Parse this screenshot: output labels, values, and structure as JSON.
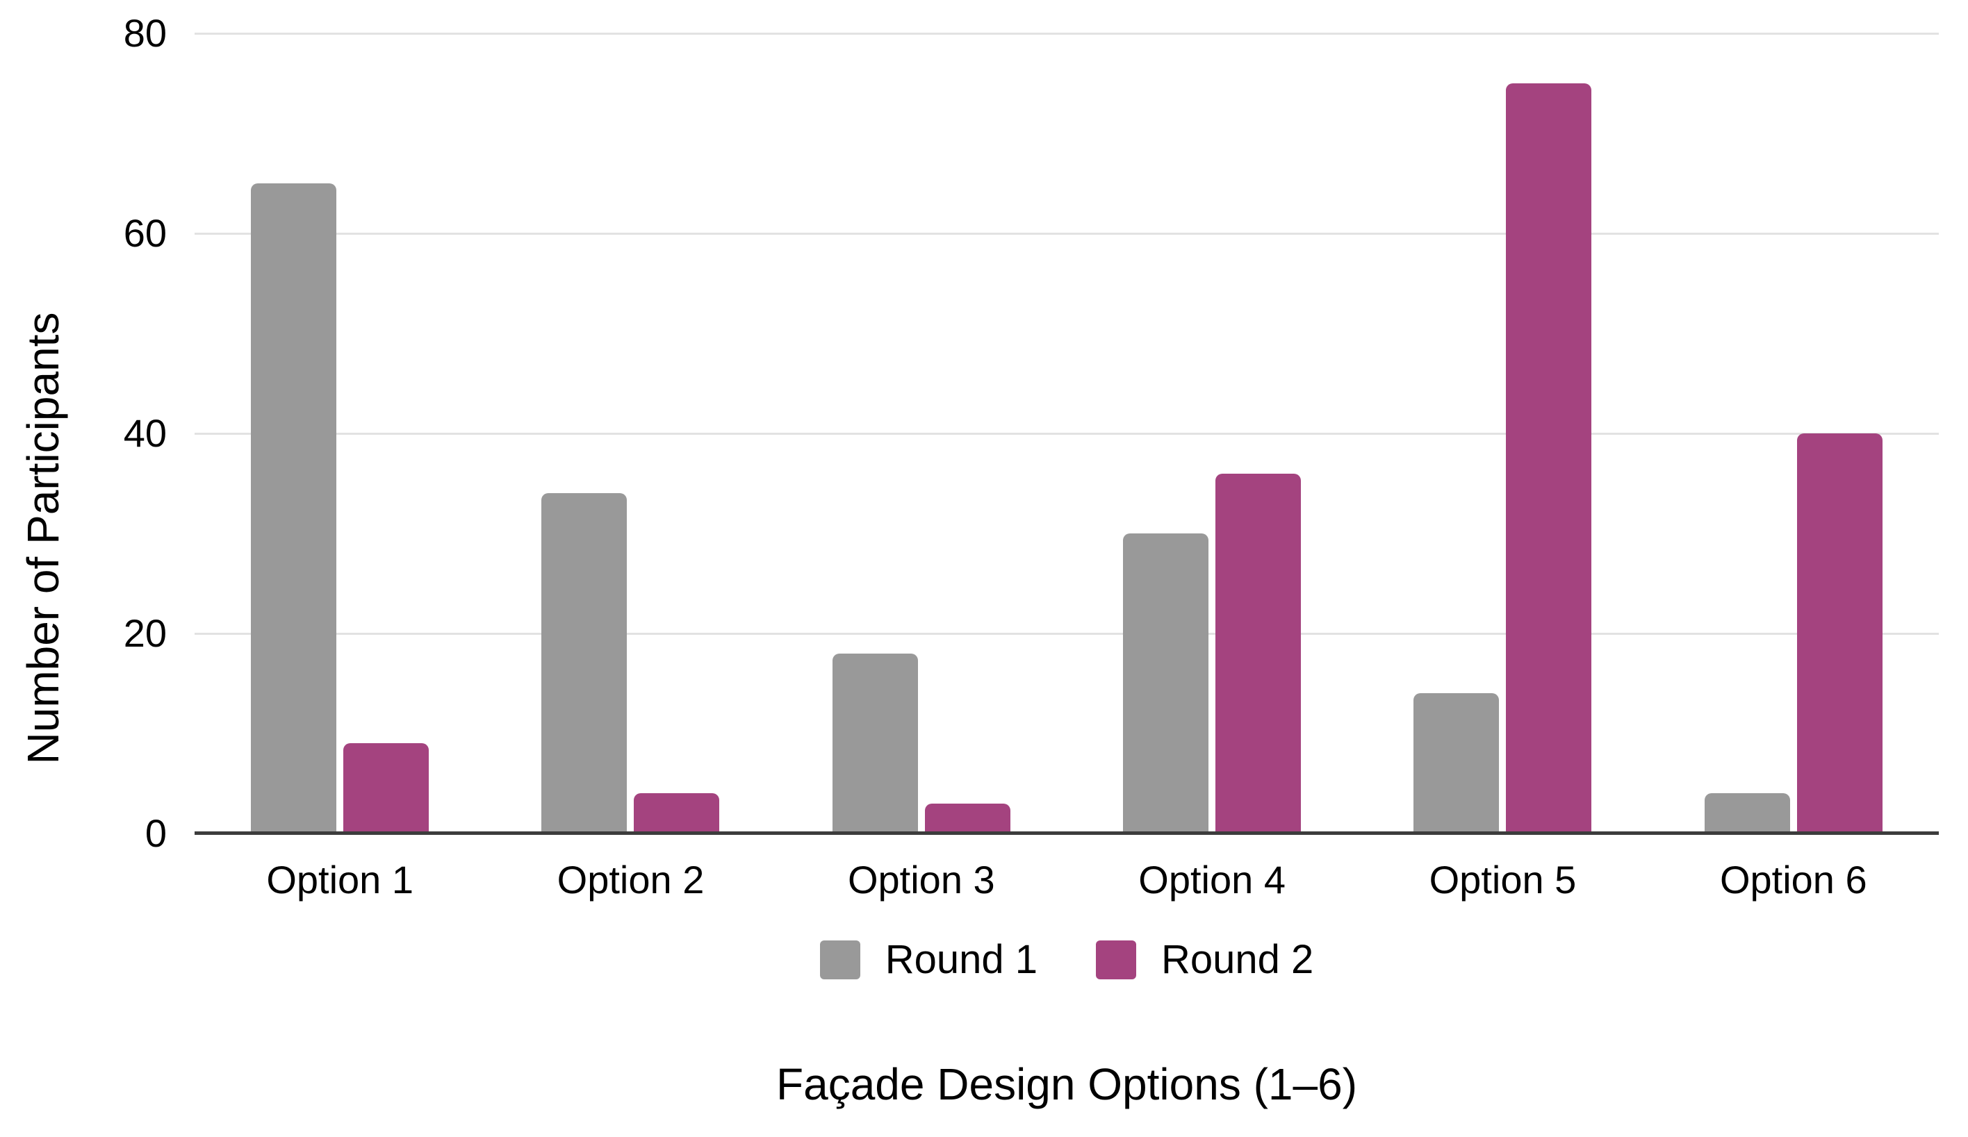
{
  "chart_data": {
    "type": "bar",
    "title": "",
    "categories": [
      "Option 1",
      "Option 2",
      "Option 3",
      "Option 4",
      "Option 5",
      "Option 6"
    ],
    "series": [
      {
        "name": "Round 1",
        "color": "#999999",
        "values": [
          65,
          34,
          18,
          30,
          14,
          4
        ]
      },
      {
        "name": "Round 2",
        "color": "#a4437f",
        "values": [
          9,
          4,
          3,
          36,
          75,
          40
        ]
      }
    ],
    "xlabel": "Façade Design Options (1–6)",
    "ylabel": "Number of Participants",
    "ylim": [
      0,
      80
    ],
    "yticks": [
      0,
      20,
      40,
      60,
      80
    ],
    "grid": true,
    "legend_position": "bottom"
  },
  "colors": {
    "gridline": "#e2e2e2",
    "axis": "#3c3c3c",
    "text": "#000000",
    "background": "#ffffff"
  }
}
